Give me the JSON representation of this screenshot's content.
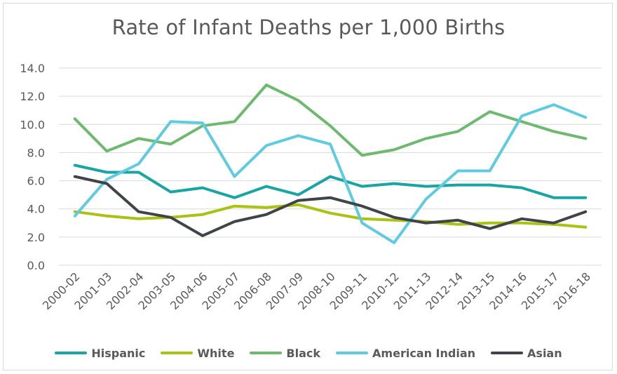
{
  "chart_data": {
    "type": "line",
    "title": "Rate of Infant Deaths per 1,000 Births",
    "categories": [
      "2000-02",
      "2001-03",
      "2002-04",
      "2003-05",
      "2004-06",
      "2005-07",
      "2006-08",
      "2007-09",
      "2008-10",
      "2009-11",
      "2010-12",
      "2011-13",
      "2012-14",
      "2013-15",
      "2014-16",
      "2015-17",
      "2016-18"
    ],
    "ylim": [
      0,
      14
    ],
    "yticks": [
      "0.0",
      "2.0",
      "4.0",
      "6.0",
      "8.0",
      "10.0",
      "12.0",
      "14.0"
    ],
    "grid": true,
    "legend": "bottom",
    "series": [
      {
        "name": "Hispanic",
        "color": "#1aa5a5",
        "values": [
          7.1,
          6.6,
          6.6,
          5.2,
          5.5,
          4.8,
          5.6,
          5.0,
          6.3,
          5.6,
          5.8,
          5.6,
          5.7,
          5.7,
          5.5,
          4.8,
          4.8
        ]
      },
      {
        "name": "White",
        "color": "#a9c214",
        "values": [
          3.8,
          3.5,
          3.3,
          3.4,
          3.6,
          4.2,
          4.1,
          4.3,
          3.7,
          3.3,
          3.2,
          3.1,
          2.9,
          3.0,
          3.0,
          2.9,
          2.7
        ]
      },
      {
        "name": "Black",
        "color": "#6dba6f",
        "values": [
          10.4,
          8.1,
          9.0,
          8.6,
          9.9,
          10.2,
          12.8,
          11.7,
          9.9,
          7.8,
          8.2,
          9.0,
          9.5,
          10.9,
          10.2,
          9.5,
          9.0
        ]
      },
      {
        "name": "American Indian",
        "color": "#5fcbe0",
        "values": [
          3.5,
          6.1,
          7.2,
          10.2,
          10.1,
          6.3,
          8.5,
          9.2,
          8.6,
          3.0,
          1.6,
          4.7,
          6.7,
          6.7,
          10.6,
          11.4,
          10.5
        ]
      },
      {
        "name": "Asian",
        "color": "#3f4448",
        "values": [
          6.3,
          5.8,
          3.8,
          3.4,
          2.1,
          3.1,
          3.6,
          4.6,
          4.8,
          4.2,
          3.4,
          3.0,
          3.2,
          2.6,
          3.3,
          3.0,
          3.8
        ]
      }
    ]
  }
}
